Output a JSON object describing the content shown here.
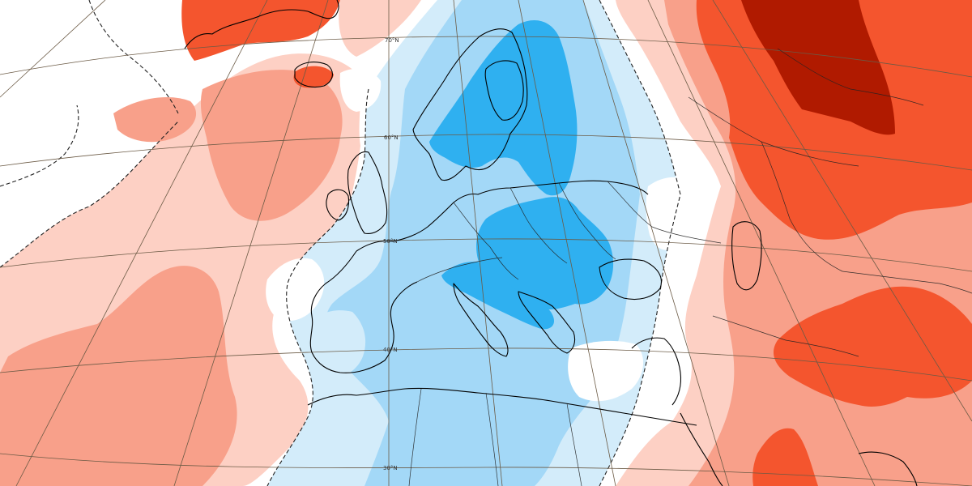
{
  "map": {
    "type": "anomaly-map",
    "region": "Europe and North Atlantic",
    "latitude_labels": [
      "70°N",
      "60°N",
      "50°N",
      "40°N",
      "30°N"
    ],
    "colors": {
      "background": "#ffffff",
      "warm_1": "#fdd0c4",
      "warm_2": "#f8a08a",
      "warm_3": "#f4552e",
      "warm_4": "#b01a00",
      "cold_1": "#d3ecfa",
      "cold_2": "#a3d8f7",
      "cold_3": "#2fb0f0",
      "coast": "#000000",
      "graticule": "#6b5a45"
    }
  }
}
